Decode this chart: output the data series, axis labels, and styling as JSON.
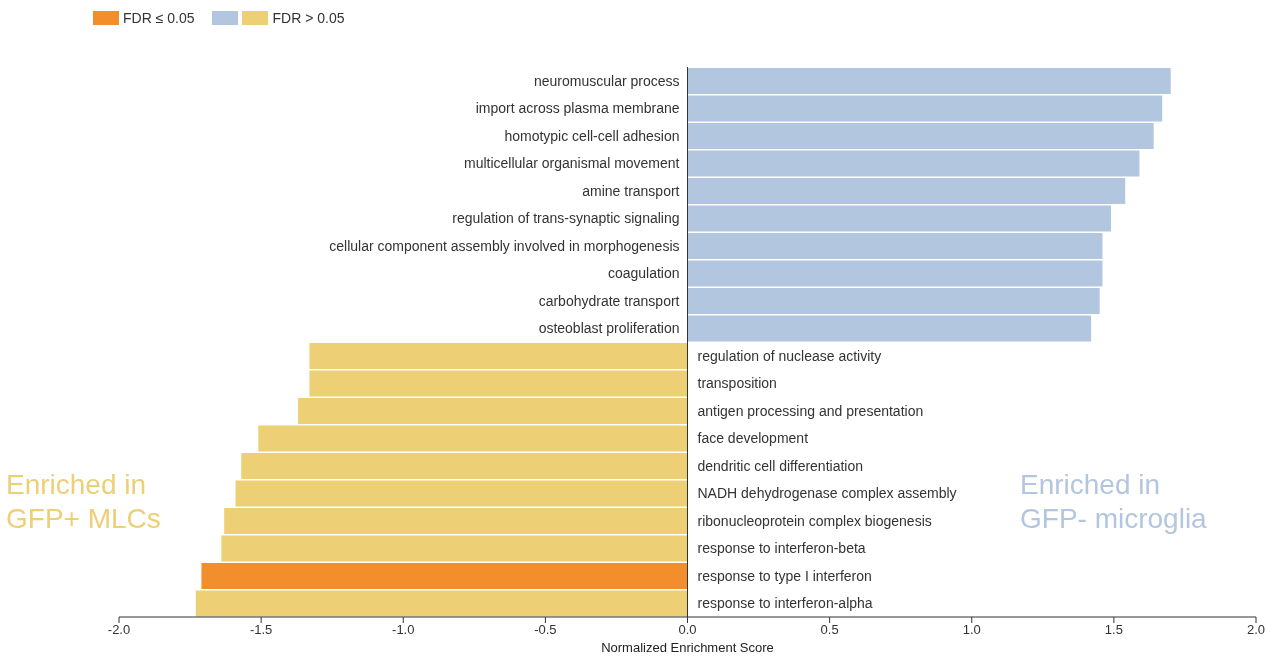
{
  "chart_data": {
    "type": "bar",
    "orientation": "horizontal",
    "stacked": true,
    "xlabel": "Normalized Enrichment Score",
    "categories": [
      "neuromuscular process",
      "import across plasma membrane",
      "homotypic cell-cell adhesion",
      "multicellular organismal movement",
      "amine transport",
      "regulation of trans-synaptic signaling",
      "cellular component assembly involved in morphogenesis",
      "coagulation",
      "carbohydrate transport",
      "osteoblast proliferation",
      "regulation of nuclease activity",
      "transposition",
      "antigen processing and presentation",
      "face development",
      "dendritic cell differentiation",
      "NADH dehydrogenase complex assembly",
      "ribonucleoprotein complex biogenesis",
      "response to interferon-beta",
      "response to type I interferon",
      "response to interferon-alpha"
    ],
    "series": [
      {
        "name": "FDR ≤ 0.05",
        "color": "#f28e2b",
        "values": [
          null,
          null,
          null,
          null,
          null,
          null,
          null,
          null,
          null,
          null,
          null,
          null,
          null,
          null,
          null,
          null,
          null,
          null,
          -1.71,
          null
        ]
      },
      {
        "name": "FDR > 0.05",
        "colors": [
          "#b3c6e0",
          "#b3c6e0",
          "#b3c6e0",
          "#b3c6e0",
          "#b3c6e0",
          "#b3c6e0",
          "#b3c6e0",
          "#b3c6e0",
          "#b3c6e0",
          "#b3c6e0",
          "#edcf76",
          "#edcf76",
          "#edcf76",
          "#edcf76",
          "#edcf76",
          "#edcf76",
          "#edcf76",
          "#edcf76",
          null,
          "#edcf76"
        ],
        "values": [
          1.7,
          1.67,
          1.64,
          1.59,
          1.54,
          1.49,
          1.46,
          1.46,
          1.45,
          1.42,
          -1.33,
          -1.33,
          -1.37,
          -1.51,
          -1.57,
          -1.59,
          -1.63,
          -1.64,
          null,
          -1.73
        ]
      }
    ],
    "xlim": [
      -2,
      2
    ],
    "xticks": [
      {
        "value": -2,
        "label": "-2.0"
      },
      {
        "value": -1.5,
        "label": "-1.5"
      },
      {
        "value": -1,
        "label": "-1.0"
      },
      {
        "value": -0.5,
        "label": "-0.5"
      },
      {
        "value": 0,
        "label": "0.0"
      },
      {
        "value": 0.5,
        "label": "0.5"
      },
      {
        "value": 1,
        "label": "1.0"
      },
      {
        "value": 1.5,
        "label": "1.5"
      },
      {
        "value": 2,
        "label": "2.0"
      }
    ],
    "grid": false,
    "legend": "top left",
    "annotations": [
      "Enriched in\nGFP+ MLCs",
      "Enriched in\nGFP- microglia"
    ]
  }
}
